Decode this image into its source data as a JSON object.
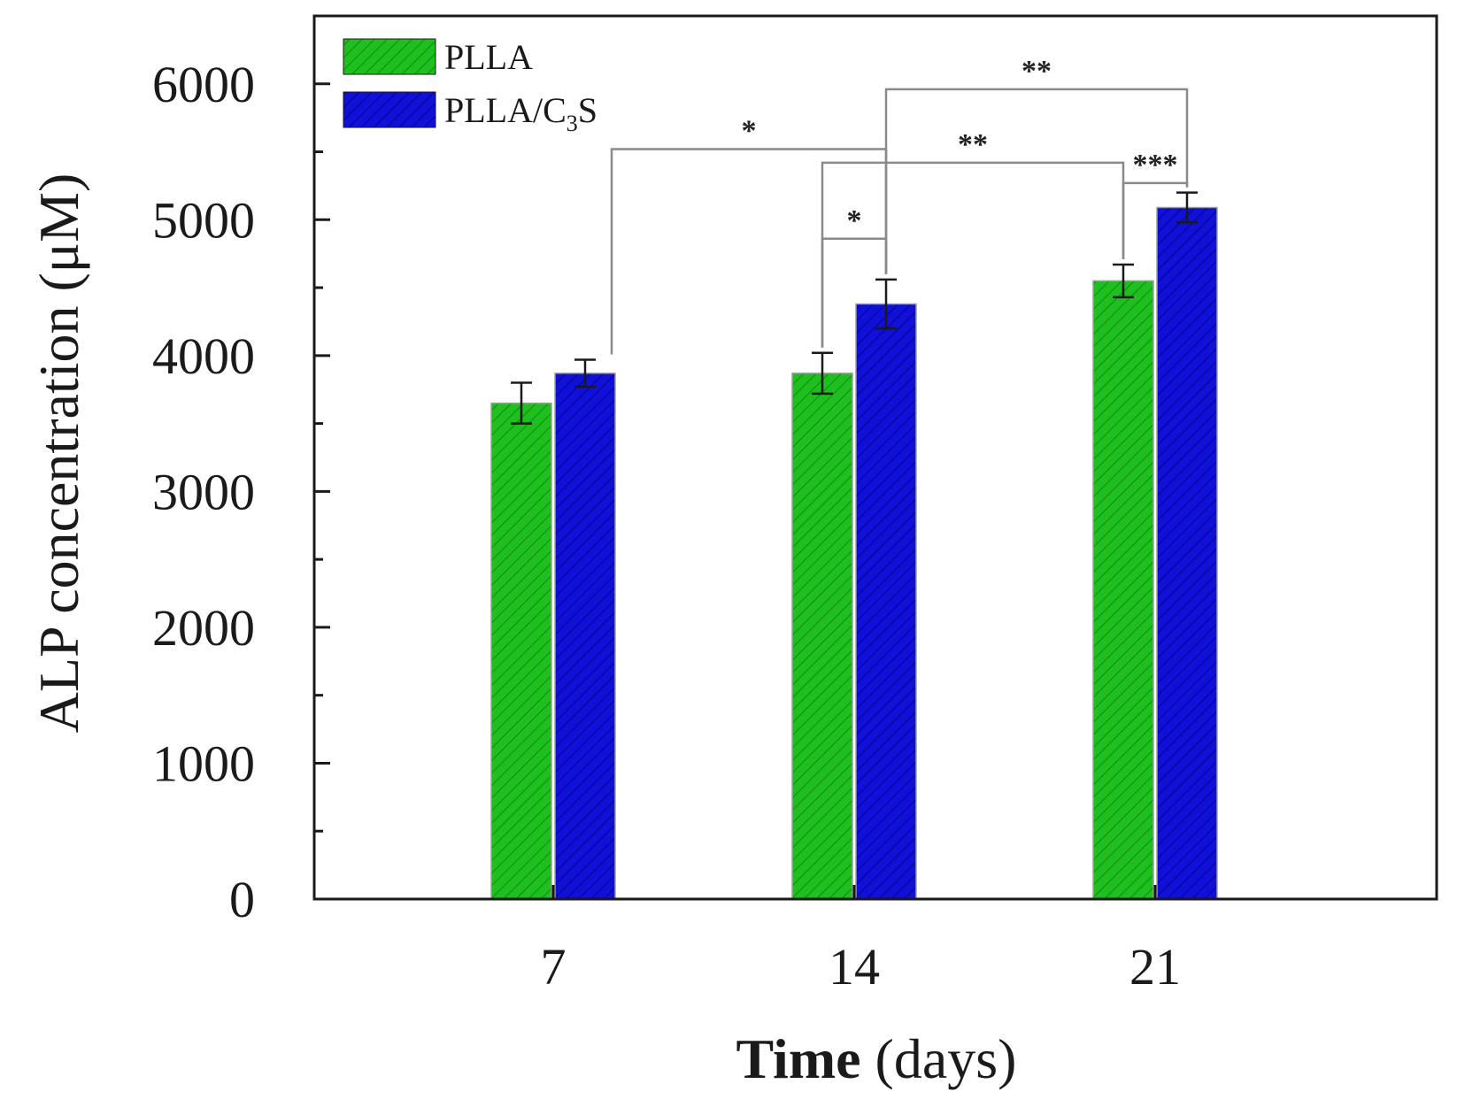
{
  "chart_data": {
    "type": "bar",
    "categories": [
      "7",
      "14",
      "21"
    ],
    "series": [
      {
        "name": "PLLA",
        "color": "#1fbf1f",
        "values": [
          3650,
          3870,
          4550
        ],
        "errors": [
          150,
          150,
          120
        ]
      },
      {
        "name": "PLLA/C3S",
        "color": "#1010d8",
        "values": [
          3870,
          4380,
          5090
        ],
        "errors": [
          100,
          180,
          110
        ]
      }
    ],
    "legend": {
      "placement": "top-left",
      "entries": [
        {
          "main": "PLLA",
          "sub": "",
          "tail": ""
        },
        {
          "main": "PLLA/C",
          "sub": "3",
          "tail": "S"
        }
      ]
    },
    "ylabel": "ALP concentration (μM)",
    "xlabel_bold": "Time",
    "xlabel_rest": " (days)",
    "ylim": [
      0,
      6500
    ],
    "yticks": [
      0,
      1000,
      2000,
      3000,
      4000,
      5000,
      6000
    ],
    "significance": [
      {
        "label": "*",
        "from": [
          0,
          1
        ],
        "to": [
          1,
          1
        ],
        "level": 5520
      },
      {
        "label": "*",
        "from": [
          1,
          0
        ],
        "to": [
          1,
          1
        ],
        "level": 4860
      },
      {
        "label": "**",
        "from": [
          1,
          0
        ],
        "to": [
          2,
          0
        ],
        "level": 5420
      },
      {
        "label": "***",
        "from": [
          2,
          0
        ],
        "to": [
          2,
          1
        ],
        "level": 5270
      },
      {
        "label": "**",
        "from": [
          1,
          1
        ],
        "to": [
          2,
          1
        ],
        "level": 5960
      }
    ]
  }
}
